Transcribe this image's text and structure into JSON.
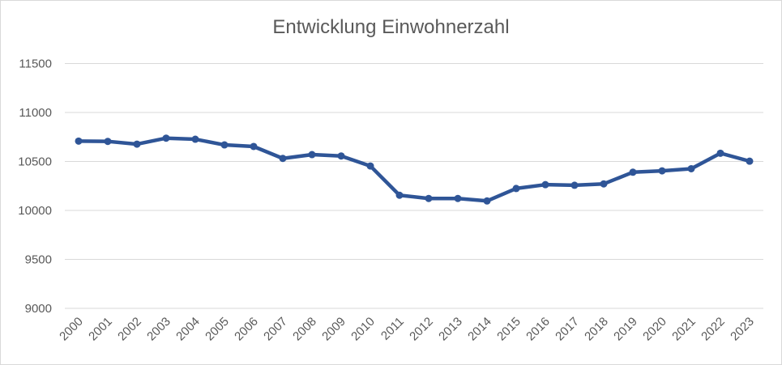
{
  "chart_data": {
    "type": "line",
    "title": "Entwicklung Einwohnerzahl",
    "xlabel": "",
    "ylabel": "",
    "categories": [
      "2000",
      "2001",
      "2002",
      "2003",
      "2004",
      "2005",
      "2006",
      "2007",
      "2008",
      "2009",
      "2010",
      "2011",
      "2012",
      "2013",
      "2014",
      "2015",
      "2016",
      "2017",
      "2018",
      "2019",
      "2020",
      "2021",
      "2022",
      "2023"
    ],
    "series": [
      {
        "name": "Einwohnerzahl",
        "color": "#2f5597",
        "values": [
          10708,
          10705,
          10677,
          10738,
          10727,
          10669,
          10653,
          10531,
          10570,
          10556,
          10454,
          10155,
          10122,
          10122,
          10097,
          10224,
          10263,
          10257,
          10271,
          10390,
          10404,
          10426,
          10584,
          10503
        ]
      }
    ],
    "ylim": [
      9000,
      11500
    ],
    "yticks": [
      "9000",
      "9500",
      "10000",
      "10500",
      "11000",
      "11500"
    ],
    "grid": true,
    "legend": "none"
  }
}
